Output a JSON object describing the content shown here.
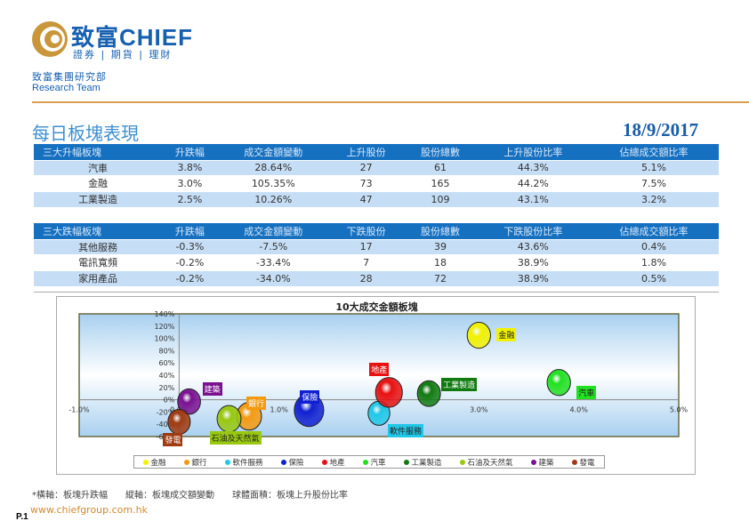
{
  "header": {
    "logo_text": "致富CHIEF",
    "logo_sub": "證券 | 期貨 | 理財",
    "dept": "致富集團研究部",
    "team": "Research Team"
  },
  "page_title": "每日板塊表現",
  "date": "18/9/2017",
  "top_table": {
    "headers": [
      "三大升幅板塊",
      "升跌幅",
      "成交金額變動",
      "上升股份",
      "股份總數",
      "上升股份比率",
      "佔總成交額比率"
    ],
    "rows": [
      [
        "汽車",
        "3.8%",
        "28.64%",
        "27",
        "61",
        "44.3%",
        "5.1%"
      ],
      [
        "金融",
        "3.0%",
        "105.35%",
        "73",
        "165",
        "44.2%",
        "7.5%"
      ],
      [
        "工業製造",
        "2.5%",
        "10.26%",
        "47",
        "109",
        "43.1%",
        "3.2%"
      ]
    ]
  },
  "bottom_table": {
    "headers": [
      "三大跌幅板塊",
      "升跌幅",
      "成交金額變動",
      "下跌股份",
      "股份總數",
      "下跌股份比率",
      "佔總成交額比率"
    ],
    "rows": [
      [
        "其他服務",
        "-0.3%",
        "-7.5%",
        "17",
        "39",
        "43.6%",
        "0.4%"
      ],
      [
        "電訊寬頻",
        "-0.2%",
        "-33.4%",
        "7",
        "18",
        "38.9%",
        "1.8%"
      ],
      [
        "家用產品",
        "-0.2%",
        "-34.0%",
        "28",
        "72",
        "38.9%",
        "0.5%"
      ]
    ]
  },
  "chart_data": {
    "type": "scatter",
    "subtype": "bubble",
    "title": "10大成交金額板塊",
    "xlabel": "板塊升跌幅",
    "ylabel": "板塊成交額變動",
    "size_label": "板塊上升股份比率",
    "xlim": [
      -1,
      5
    ],
    "ylim": [
      -60,
      140
    ],
    "xticks": [
      "-1.0%",
      "0.0%",
      "1.0%",
      "2.0%",
      "3.0%",
      "4.0%",
      "5.0%"
    ],
    "yticks": [
      "140%",
      "120%",
      "100%",
      "80%",
      "60%",
      "40%",
      "20%",
      "0%",
      "-20%",
      "-40%",
      "-60%"
    ],
    "legend_position": "bottom",
    "series": [
      {
        "name": "金融",
        "x": 3.0,
        "y": 105,
        "size": 44,
        "color": "#f2f200"
      },
      {
        "name": "銀行",
        "x": 0.7,
        "y": -27,
        "size": 50,
        "color": "#f59a10"
      },
      {
        "name": "軟件服務",
        "x": 2.0,
        "y": -22,
        "size": 38,
        "color": "#20c8e8"
      },
      {
        "name": "保險",
        "x": 1.3,
        "y": -17,
        "size": 70,
        "color": "#1020d0"
      },
      {
        "name": "地產",
        "x": 2.1,
        "y": 12,
        "size": 58,
        "color": "#e81010"
      },
      {
        "name": "汽車",
        "x": 3.8,
        "y": 28,
        "size": 44,
        "color": "#20e020"
      },
      {
        "name": "工業製造",
        "x": 2.5,
        "y": 10,
        "size": 43,
        "color": "#107a10"
      },
      {
        "name": "石油及天然氣",
        "x": 0.5,
        "y": -31,
        "size": 46,
        "color": "#98c810"
      },
      {
        "name": "建築",
        "x": 0.1,
        "y": -3,
        "size": 42,
        "color": "#7a1090"
      },
      {
        "name": "發電",
        "x": 0.0,
        "y": -36,
        "size": 40,
        "color": "#a03a10"
      }
    ]
  },
  "footnote": "*橫軸：板塊升跌幅　　縱軸：板塊成交額變動　　球體面積：板塊上升股份比率",
  "page_number": "P.1",
  "url": "www.chiefgroup.com.hk"
}
